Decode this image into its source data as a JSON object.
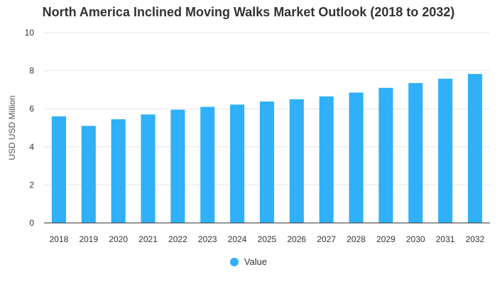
{
  "chart_data": {
    "type": "bar",
    "title": "North America Inclined Moving Walks Market Outlook (2018 to 2032)",
    "ylabel": "USD USD Million",
    "xlabel": "",
    "categories": [
      "2018",
      "2019",
      "2020",
      "2021",
      "2022",
      "2023",
      "2024",
      "2025",
      "2026",
      "2027",
      "2028",
      "2029",
      "2030",
      "2031",
      "2032"
    ],
    "series": [
      {
        "name": "Value",
        "values": [
          5.6,
          5.1,
          5.45,
          5.7,
          5.95,
          6.1,
          6.22,
          6.38,
          6.5,
          6.65,
          6.85,
          7.1,
          7.35,
          7.58,
          7.83
        ]
      }
    ],
    "ylim": [
      0,
      10
    ],
    "yticks": [
      0,
      2,
      4,
      6,
      8,
      10
    ],
    "grid": true,
    "legend": "bottom-center",
    "color": "#2fb0f8"
  }
}
